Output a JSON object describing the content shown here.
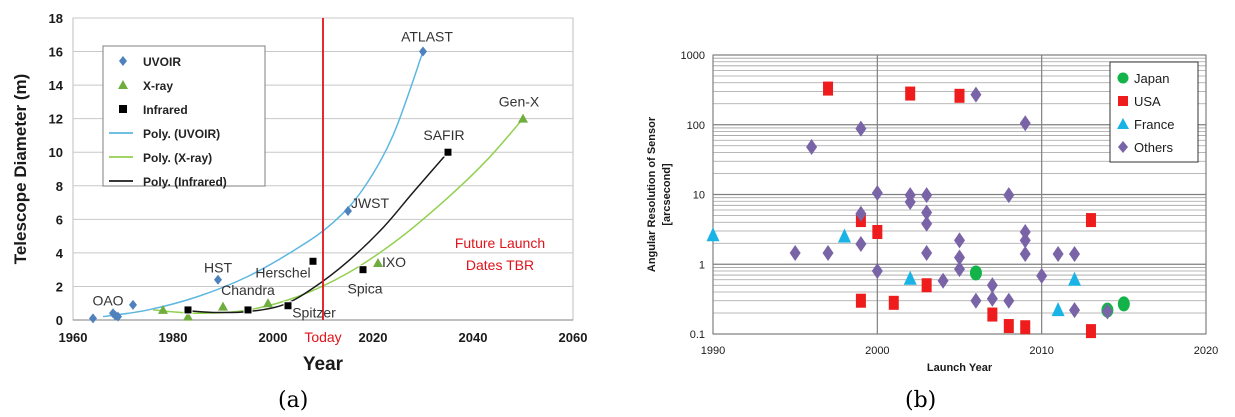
{
  "captions": [
    "(a)",
    "(b)"
  ],
  "chart_data": [
    {
      "type": "scatter",
      "xlabel": "Year",
      "ylabel": "Telescope Diameter (m)",
      "xlim": [
        1960,
        2060
      ],
      "ylim": [
        0,
        18
      ],
      "xticks": [
        "1960",
        "1980",
        "2000",
        "2020",
        "2040",
        "2060"
      ],
      "yticks": [
        "0",
        "2",
        "4",
        "6",
        "8",
        "10",
        "12",
        "14",
        "16",
        "18"
      ],
      "grid": true,
      "legend_position": "top-left",
      "legend": [
        "UVOIR",
        "X-ray",
        "Infrared",
        "Poly. (UVOIR)",
        "Poly. (X-ray)",
        "Poly. (Infrared)"
      ],
      "colors": {
        "uvoir": "#4f81bd",
        "xray": "#70ad3f",
        "infrared": "#000000",
        "uvoir_fit": "#5db7e0",
        "xray_fit": "#92d050",
        "infrared_fit": "#1a1a1a",
        "today": "#e0131a",
        "future": "#e0131a"
      },
      "series": [
        {
          "name": "UVOIR",
          "marker": "diamond",
          "points": [
            [
              1964,
              0.1
            ],
            [
              1968,
              0.4
            ],
            [
              1968.5,
              0.25
            ],
            [
              1969,
              0.2
            ],
            [
              1972,
              0.9
            ],
            [
              1989,
              2.4
            ],
            [
              2015,
              6.5
            ],
            [
              2030,
              16
            ]
          ]
        },
        {
          "name": "X-ray",
          "marker": "triangle",
          "points": [
            [
              1978,
              0.6
            ],
            [
              1983,
              0.2
            ],
            [
              1990,
              0.8
            ],
            [
              1999,
              1.0
            ],
            [
              2021,
              3.4
            ],
            [
              2050,
              12
            ]
          ]
        },
        {
          "name": "Infrared",
          "marker": "square",
          "points": [
            [
              1983,
              0.6
            ],
            [
              1995,
              0.6
            ],
            [
              2003,
              0.85
            ],
            [
              2008,
              3.5
            ],
            [
              2018,
              3.0
            ],
            [
              2035,
              10
            ]
          ]
        }
      ],
      "fits": [
        {
          "name": "Poly. (UVOIR)",
          "points": [
            [
              1966,
              0.2
            ],
            [
              1975,
              0.6
            ],
            [
              1985,
              1.4
            ],
            [
              1995,
              2.6
            ],
            [
              2005,
              4.3
            ],
            [
              2012,
              5.8
            ],
            [
              2018,
              7.8
            ],
            [
              2024,
              11.0
            ],
            [
              2030,
              16
            ]
          ]
        },
        {
          "name": "Poly. (X-ray)",
          "points": [
            [
              1976,
              0.6
            ],
            [
              1985,
              0.4
            ],
            [
              1995,
              0.6
            ],
            [
              2005,
              1.4
            ],
            [
              2015,
              2.8
            ],
            [
              2025,
              4.8
            ],
            [
              2035,
              7.3
            ],
            [
              2043,
              9.6
            ],
            [
              2050,
              12
            ]
          ]
        },
        {
          "name": "Poly. (Infrared)",
          "points": [
            [
              1983,
              0.55
            ],
            [
              1988,
              0.45
            ],
            [
              1995,
              0.5
            ],
            [
              2002,
              0.9
            ],
            [
              2008,
              1.9
            ],
            [
              2015,
              3.5
            ],
            [
              2022,
              5.5
            ],
            [
              2028,
              7.6
            ],
            [
              2035,
              10
            ]
          ]
        }
      ],
      "annotations": [
        {
          "text": "ATLAST",
          "x": 2030,
          "y": 16
        },
        {
          "text": "Gen-X",
          "x": 2050,
          "y": 12
        },
        {
          "text": "SAFIR",
          "x": 2035,
          "y": 10
        },
        {
          "text": "JWST",
          "x": 2015,
          "y": 6.5
        },
        {
          "text": "HST",
          "x": 1989,
          "y": 2.4
        },
        {
          "text": "Herschel",
          "x": 2008,
          "y": 3.5
        },
        {
          "text": "Chandra",
          "x": 1999,
          "y": 1.0
        },
        {
          "text": "OAO",
          "x": 1968,
          "y": 0.4
        },
        {
          "text": "Spitzer",
          "x": 2003,
          "y": 0.85
        },
        {
          "text": "Spica",
          "x": 2018,
          "y": 3.0
        },
        {
          "text": "IXO",
          "x": 2021,
          "y": 3.4
        }
      ],
      "today_line": {
        "x": 2010,
        "label": "Today"
      },
      "future_note": [
        "Future Launch",
        "Dates TBR"
      ]
    },
    {
      "type": "scatter",
      "xlabel": "Launch Year",
      "ylabel": [
        "Angular Resolution of Sensor",
        "[arcsecond]"
      ],
      "xlim": [
        1990,
        2020
      ],
      "ylim": [
        0.1,
        1000
      ],
      "yscale": "log",
      "xticks": [
        "1990",
        "2000",
        "2010",
        "2020"
      ],
      "yticks": [
        "0.1",
        "1",
        "10",
        "100",
        "1000"
      ],
      "grid": true,
      "legend_position": "top-right",
      "colors": {
        "Japan": "#14b34a",
        "USA": "#ee1c1c",
        "France": "#1ab3e6",
        "Others": "#7a64a8"
      },
      "series": [
        {
          "name": "Japan",
          "marker": "circle",
          "points": [
            [
              2006,
              0.75
            ],
            [
              2014,
              0.22
            ],
            [
              2015,
              0.27
            ]
          ]
        },
        {
          "name": "USA",
          "marker": "square",
          "points": [
            [
              1997,
              330
            ],
            [
              2002,
              280
            ],
            [
              2005,
              260
            ],
            [
              1999,
              4.3
            ],
            [
              2000,
              2.9
            ],
            [
              1999,
              0.3
            ],
            [
              2001,
              0.28
            ],
            [
              2003,
              0.5
            ],
            [
              2007,
              0.19
            ],
            [
              2008,
              0.13
            ],
            [
              2009,
              0.125
            ],
            [
              2013,
              4.3
            ],
            [
              2013,
              0.11
            ]
          ]
        },
        {
          "name": "France",
          "marker": "triangle",
          "points": [
            [
              1990,
              2.6
            ],
            [
              1998,
              2.5
            ],
            [
              2002,
              0.62
            ],
            [
              2011,
              0.22
            ],
            [
              2012,
              0.6
            ]
          ]
        },
        {
          "name": "Others",
          "marker": "diamond",
          "points": [
            [
              1996,
              48
            ],
            [
              1999,
              88
            ],
            [
              1999,
              5.3
            ],
            [
              1999,
              1.95
            ],
            [
              1995,
              1.45
            ],
            [
              1997,
              1.45
            ],
            [
              2000,
              10.5
            ],
            [
              2000,
              0.8
            ],
            [
              2002,
              9.8
            ],
            [
              2002,
              7.8
            ],
            [
              2003,
              9.8
            ],
            [
              2003,
              5.5
            ],
            [
              2003,
              3.8
            ],
            [
              2003,
              1.45
            ],
            [
              2004,
              0.58
            ],
            [
              2005,
              2.2
            ],
            [
              2005,
              1.25
            ],
            [
              2005,
              0.85
            ],
            [
              2006,
              270
            ],
            [
              2006,
              0.3
            ],
            [
              2007,
              0.5
            ],
            [
              2007,
              0.32
            ],
            [
              2008,
              9.8
            ],
            [
              2008,
              0.3
            ],
            [
              2009,
              105
            ],
            [
              2009,
              2.9
            ],
            [
              2009,
              2.2
            ],
            [
              2009,
              1.4
            ],
            [
              2010,
              0.68
            ],
            [
              2011,
              1.4
            ],
            [
              2012,
              1.4
            ],
            [
              2012,
              0.22
            ],
            [
              2014,
              0.21
            ]
          ]
        }
      ]
    }
  ]
}
